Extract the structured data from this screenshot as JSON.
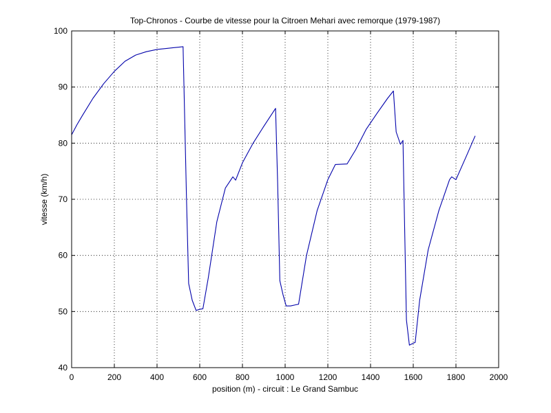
{
  "chart_data": {
    "type": "line",
    "title": "Top-Chronos - Courbe de vitesse pour la Citroen Mehari avec remorque (1979-1987)",
    "xlabel": "position (m) - circuit : Le Grand Sambuc",
    "ylabel": "vitesse (km/h)",
    "xlim": [
      0,
      2000
    ],
    "ylim": [
      40,
      100
    ],
    "xticks": [
      0,
      200,
      400,
      600,
      800,
      1000,
      1200,
      1400,
      1600,
      1800,
      2000
    ],
    "yticks": [
      40,
      50,
      60,
      70,
      80,
      90,
      100
    ],
    "grid": true,
    "colors": {
      "line": "#0000aa",
      "axis": "#000000",
      "background": "#ffffff"
    },
    "series": [
      {
        "x": [
          0,
          25,
          50,
          100,
          150,
          200,
          250,
          300,
          350,
          400,
          450,
          500,
          522,
          538,
          548,
          565,
          583,
          600,
          615,
          640,
          680,
          720,
          755,
          768,
          800,
          850,
          900,
          955,
          965,
          975,
          990,
          1005,
          1025,
          1050,
          1063,
          1100,
          1150,
          1200,
          1235,
          1290,
          1330,
          1380,
          1430,
          1480,
          1507,
          1520,
          1540,
          1552,
          1557,
          1568,
          1582,
          1597,
          1609,
          1630,
          1670,
          1720,
          1770,
          1780,
          1800,
          1850,
          1890
        ],
        "y": [
          81.5,
          83.3,
          84.9,
          88.0,
          90.6,
          92.8,
          94.6,
          95.7,
          96.3,
          96.7,
          96.9,
          97.1,
          97.2,
          70.0,
          55.0,
          52.0,
          50.2,
          50.4,
          50.5,
          56.0,
          66.0,
          72.0,
          74.0,
          73.4,
          76.5,
          80.0,
          83.0,
          86.2,
          73.0,
          55.5,
          53.0,
          51.0,
          51.0,
          51.2,
          51.3,
          60.0,
          68.0,
          73.5,
          76.2,
          76.3,
          78.8,
          82.5,
          85.3,
          88.0,
          89.3,
          82.0,
          79.8,
          80.5,
          70.0,
          48.5,
          44.0,
          44.3,
          44.5,
          52.0,
          61.0,
          68.0,
          73.5,
          74.0,
          73.5,
          77.8,
          81.3
        ]
      }
    ]
  }
}
